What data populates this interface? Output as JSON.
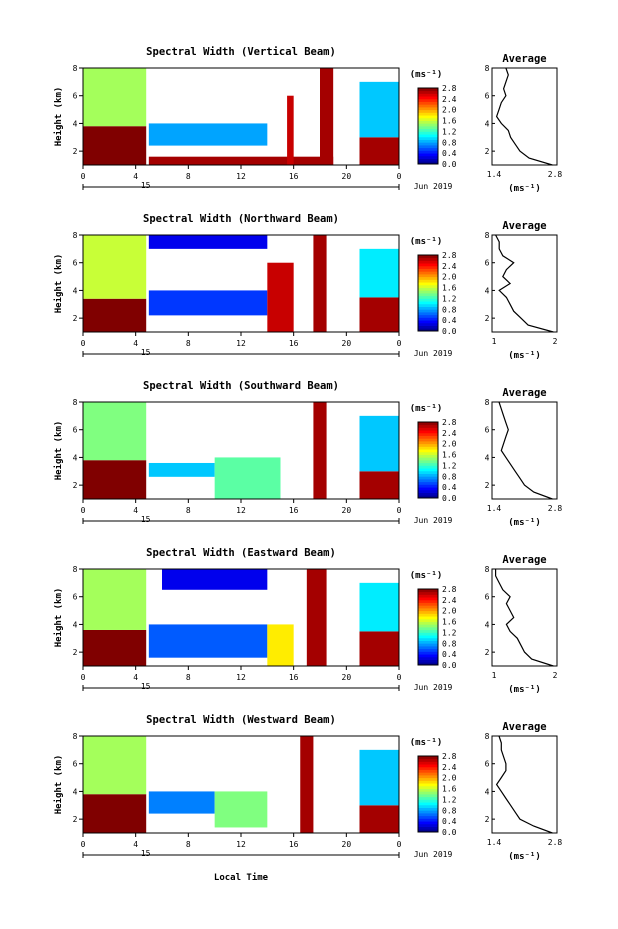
{
  "shared": {
    "time_ticks": [
      "0",
      "4",
      "8",
      "12",
      "16",
      "20",
      "0"
    ],
    "day_label": "15",
    "date_label": "Jun 2019",
    "xlabel": "Local Time",
    "height_ticks": [
      "2",
      "4",
      "6",
      "8"
    ],
    "height_label": "Height (km)",
    "cbar_unit": "(ms⁻¹)",
    "cbar_ticks": [
      "0.0",
      "0.4",
      "0.8",
      "1.2",
      "1.6",
      "2.0",
      "2.4",
      "2.8"
    ],
    "avg_title": "Average",
    "avg_unit": "(ms⁻¹)"
  },
  "chart_data": [
    {
      "type": "heatmap",
      "title": "Spectral Width (Vertical Beam)",
      "avg_ticks": [
        "1.4",
        "2.8"
      ],
      "avg_range": [
        1.4,
        2.8
      ],
      "avg_profile": {
        "height": [
          1,
          1.5,
          2,
          2.5,
          3,
          3.5,
          4,
          4.5,
          5,
          5.5,
          6,
          6.5,
          7,
          7.5,
          8
        ],
        "value": [
          2.7,
          2.2,
          2.0,
          1.9,
          1.8,
          1.75,
          1.6,
          1.5,
          1.55,
          1.6,
          1.7,
          1.65,
          1.7,
          1.75,
          1.7
        ]
      },
      "regions": [
        {
          "t0": 0,
          "t1": 4.8,
          "h0": 1,
          "h1": 3.8,
          "v": 2.8
        },
        {
          "t0": 0,
          "t1": 4.8,
          "h0": 3.8,
          "h1": 8,
          "v": 1.5
        },
        {
          "t0": 5,
          "t1": 14,
          "h0": 2.4,
          "h1": 4,
          "v": 0.8
        },
        {
          "t0": 5,
          "t1": 19,
          "h0": 1,
          "h1": 1.6,
          "v": 2.7
        },
        {
          "t0": 15.5,
          "t1": 16,
          "h0": 1,
          "h1": 6,
          "v": 2.6
        },
        {
          "t0": 18,
          "t1": 19,
          "h0": 1,
          "h1": 8,
          "v": 2.7
        },
        {
          "t0": 21,
          "t1": 24,
          "h0": 1,
          "h1": 3,
          "v": 2.7
        },
        {
          "t0": 21,
          "t1": 24,
          "h0": 3,
          "h1": 7,
          "v": 0.9
        }
      ]
    },
    {
      "type": "heatmap",
      "title": "Spectral Width (Northward Beam)",
      "avg_ticks": [
        "1",
        "2"
      ],
      "avg_range": [
        1,
        2.8
      ],
      "avg_profile": {
        "height": [
          1,
          1.5,
          2,
          2.5,
          3,
          3.5,
          4,
          4.5,
          5,
          5.5,
          6,
          6.5,
          7,
          7.5,
          8
        ],
        "value": [
          2.7,
          2.0,
          1.8,
          1.6,
          1.5,
          1.4,
          1.2,
          1.5,
          1.3,
          1.4,
          1.6,
          1.3,
          1.2,
          1.2,
          1.1
        ]
      },
      "regions": [
        {
          "t0": 0,
          "t1": 4.8,
          "h0": 1,
          "h1": 3.4,
          "v": 2.8
        },
        {
          "t0": 0,
          "t1": 4.8,
          "h0": 3.4,
          "h1": 8,
          "v": 1.6
        },
        {
          "t0": 5,
          "t1": 14,
          "h0": 2.2,
          "h1": 4,
          "v": 0.5
        },
        {
          "t0": 5,
          "t1": 14,
          "h0": 7,
          "h1": 8,
          "v": 0.3
        },
        {
          "t0": 14,
          "t1": 16,
          "h0": 1,
          "h1": 6,
          "v": 2.6
        },
        {
          "t0": 17.5,
          "t1": 18.5,
          "h0": 1,
          "h1": 8,
          "v": 2.7
        },
        {
          "t0": 21,
          "t1": 24,
          "h0": 1,
          "h1": 3.5,
          "v": 2.7
        },
        {
          "t0": 21,
          "t1": 24,
          "h0": 3.5,
          "h1": 7,
          "v": 1.0
        }
      ]
    },
    {
      "type": "heatmap",
      "title": "Spectral Width (Southward Beam)",
      "avg_ticks": [
        "1.4",
        "2.8"
      ],
      "avg_range": [
        1.4,
        2.8
      ],
      "avg_profile": {
        "height": [
          1,
          1.5,
          2,
          2.5,
          3,
          3.5,
          4,
          4.5,
          5,
          5.5,
          6,
          6.5,
          7,
          7.5,
          8
        ],
        "value": [
          2.7,
          2.3,
          2.1,
          2.0,
          1.9,
          1.8,
          1.7,
          1.6,
          1.65,
          1.7,
          1.75,
          1.7,
          1.65,
          1.6,
          1.55
        ]
      },
      "regions": [
        {
          "t0": 0,
          "t1": 4.8,
          "h0": 1,
          "h1": 3.8,
          "v": 2.8
        },
        {
          "t0": 0,
          "t1": 4.8,
          "h0": 3.8,
          "h1": 8,
          "v": 1.4
        },
        {
          "t0": 5,
          "t1": 10,
          "h0": 2.6,
          "h1": 3.6,
          "v": 0.9
        },
        {
          "t0": 10,
          "t1": 15,
          "h0": 1,
          "h1": 4,
          "v": 1.3
        },
        {
          "t0": 17.5,
          "t1": 18.5,
          "h0": 1,
          "h1": 8,
          "v": 2.7
        },
        {
          "t0": 21,
          "t1": 24,
          "h0": 1,
          "h1": 3,
          "v": 2.7
        },
        {
          "t0": 21,
          "t1": 24,
          "h0": 3,
          "h1": 7,
          "v": 0.9
        }
      ]
    },
    {
      "type": "heatmap",
      "title": "Spectral Width (Eastward Beam)",
      "avg_ticks": [
        "1",
        "2"
      ],
      "avg_range": [
        1,
        2.8
      ],
      "avg_profile": {
        "height": [
          1,
          1.5,
          2,
          2.5,
          3,
          3.5,
          4,
          4.5,
          5,
          5.5,
          6,
          6.5,
          7,
          7.5,
          8
        ],
        "value": [
          2.7,
          2.1,
          1.9,
          1.8,
          1.7,
          1.5,
          1.4,
          1.6,
          1.5,
          1.4,
          1.5,
          1.3,
          1.2,
          1.1,
          1.1
        ]
      },
      "regions": [
        {
          "t0": 0,
          "t1": 4.8,
          "h0": 1,
          "h1": 3.6,
          "v": 2.8
        },
        {
          "t0": 0,
          "t1": 4.8,
          "h0": 3.6,
          "h1": 8,
          "v": 1.5
        },
        {
          "t0": 5,
          "t1": 14,
          "h0": 1.6,
          "h1": 4,
          "v": 0.6
        },
        {
          "t0": 6,
          "t1": 14,
          "h0": 6.5,
          "h1": 8,
          "v": 0.3
        },
        {
          "t0": 14,
          "t1": 16,
          "h0": 1,
          "h1": 4,
          "v": 1.8
        },
        {
          "t0": 17,
          "t1": 18.5,
          "h0": 1,
          "h1": 8,
          "v": 2.7
        },
        {
          "t0": 21,
          "t1": 24,
          "h0": 1,
          "h1": 3.5,
          "v": 2.7
        },
        {
          "t0": 21,
          "t1": 24,
          "h0": 3.5,
          "h1": 7,
          "v": 1.0
        }
      ]
    },
    {
      "type": "heatmap",
      "title": "Spectral Width (Westward Beam)",
      "avg_ticks": [
        "1.4",
        "2.8"
      ],
      "avg_range": [
        1.4,
        2.8
      ],
      "avg_profile": {
        "height": [
          1,
          1.5,
          2,
          2.5,
          3,
          3.5,
          4,
          4.5,
          5,
          5.5,
          6,
          6.5,
          7,
          7.5,
          8
        ],
        "value": [
          2.7,
          2.3,
          2.0,
          1.9,
          1.8,
          1.7,
          1.6,
          1.5,
          1.6,
          1.7,
          1.7,
          1.65,
          1.6,
          1.6,
          1.55
        ]
      },
      "regions": [
        {
          "t0": 0,
          "t1": 4.8,
          "h0": 1,
          "h1": 3.8,
          "v": 2.8
        },
        {
          "t0": 0,
          "t1": 4.8,
          "h0": 3.8,
          "h1": 8,
          "v": 1.5
        },
        {
          "t0": 5,
          "t1": 10,
          "h0": 2.4,
          "h1": 4,
          "v": 0.7
        },
        {
          "t0": 10,
          "t1": 14,
          "h0": 1.4,
          "h1": 4,
          "v": 1.4
        },
        {
          "t0": 16.5,
          "t1": 17.5,
          "h0": 1,
          "h1": 8,
          "v": 2.7
        },
        {
          "t0": 21,
          "t1": 24,
          "h0": 1,
          "h1": 3,
          "v": 2.7
        },
        {
          "t0": 21,
          "t1": 24,
          "h0": 3,
          "h1": 7,
          "v": 0.9
        }
      ]
    }
  ]
}
